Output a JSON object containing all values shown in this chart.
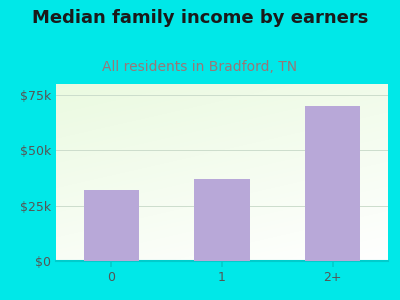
{
  "title": "Median family income by earners",
  "subtitle": "All residents in Bradford, TN",
  "categories": [
    "0",
    "1",
    "2+"
  ],
  "values": [
    32000,
    37000,
    70000
  ],
  "bar_color": "#b8a8d8",
  "title_color": "#1a1a1a",
  "subtitle_color": "#997777",
  "background_color": "#00e8e8",
  "plot_bg_top_left": "#dff0d8",
  "plot_bg_bottom_right": "#f8fff8",
  "ylim": [
    0,
    80000
  ],
  "yticks": [
    0,
    25000,
    50000,
    75000
  ],
  "ytick_labels": [
    "$0",
    "$25k",
    "$50k",
    "$75k"
  ],
  "tick_color": "#555555",
  "grid_color": "#ccddcc",
  "axis_color": "#00cccc",
  "title_fontsize": 13,
  "subtitle_fontsize": 10,
  "tick_fontsize": 9
}
